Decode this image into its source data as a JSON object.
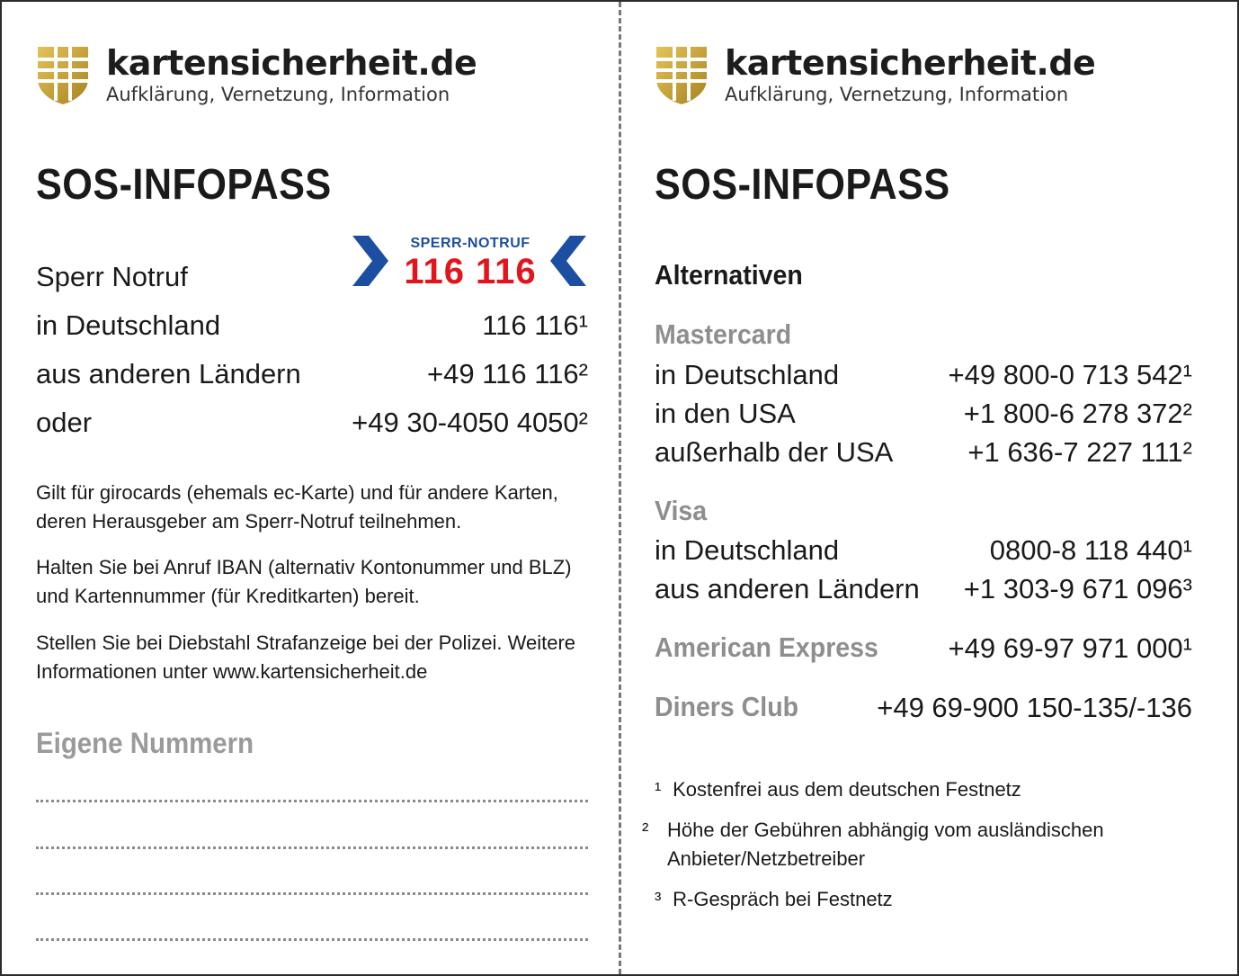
{
  "brand": {
    "name": "kartensicherheit.de",
    "tagline": "Aufklärung, Vernetzung, Information",
    "shield_color": "#c9a236"
  },
  "left": {
    "title": "SOS-INFOPASS",
    "sperr_logo": {
      "top": "SPERR-NOTRUF",
      "number": "116 116",
      "blue": "#1c4ea1",
      "red": "#e3141b"
    },
    "rows": [
      {
        "label": "Sperr Notruf",
        "number": ""
      },
      {
        "label": "in Deutschland",
        "number": "116 116¹"
      },
      {
        "label": "aus anderen Ländern",
        "number": "+49 116 116²"
      },
      {
        "label": "oder",
        "number": "+49 30-4050 4050²"
      }
    ],
    "paragraphs": [
      "Gilt für girocards (ehemals ec-Karte) und für andere Karten, deren Herausgeber am Sperr-Notruf teilnehmen.",
      "Halten Sie bei Anruf IBAN (alternativ Kontonummer und BLZ) und Kartennummer (für Kreditkarten) bereit.",
      "Stellen Sie bei Diebstahl Strafanzeige bei der Polizei. Weitere Informationen unter www.kartensicherheit.de"
    ],
    "own_numbers_heading": "Eigene Nummern"
  },
  "right": {
    "title": "SOS-INFOPASS",
    "alternatives_heading": "Alternativen",
    "mastercard": {
      "name": "Mastercard",
      "rows": [
        {
          "label": "in Deutschland",
          "number": "+49 800-0 713 542¹"
        },
        {
          "label": "in den USA",
          "number": "+1 800-6 278 372²"
        },
        {
          "label": "außerhalb der USA",
          "number": "+1 636-7 227 111²"
        }
      ]
    },
    "visa": {
      "name": "Visa",
      "rows": [
        {
          "label": "in Deutschland",
          "number": "0800-8 118 440¹"
        },
        {
          "label": "aus anderen Ländern",
          "number": "+1 303-9 671 096³"
        }
      ]
    },
    "amex": {
      "name": "American Express",
      "number": "+49 69-97 971 000¹"
    },
    "diners": {
      "name": "Diners Club",
      "number": "+49 69-900 150-135/-136"
    },
    "footnotes": [
      {
        "mark": "¹",
        "text": "Kostenfrei aus dem deutschen Festnetz"
      },
      {
        "mark": "²",
        "text": "Höhe der Gebühren abhängig vom ausländischen Anbieter/Netzbetreiber"
      },
      {
        "mark": "³",
        "text": "R-Gespräch bei Festnetz"
      }
    ]
  }
}
